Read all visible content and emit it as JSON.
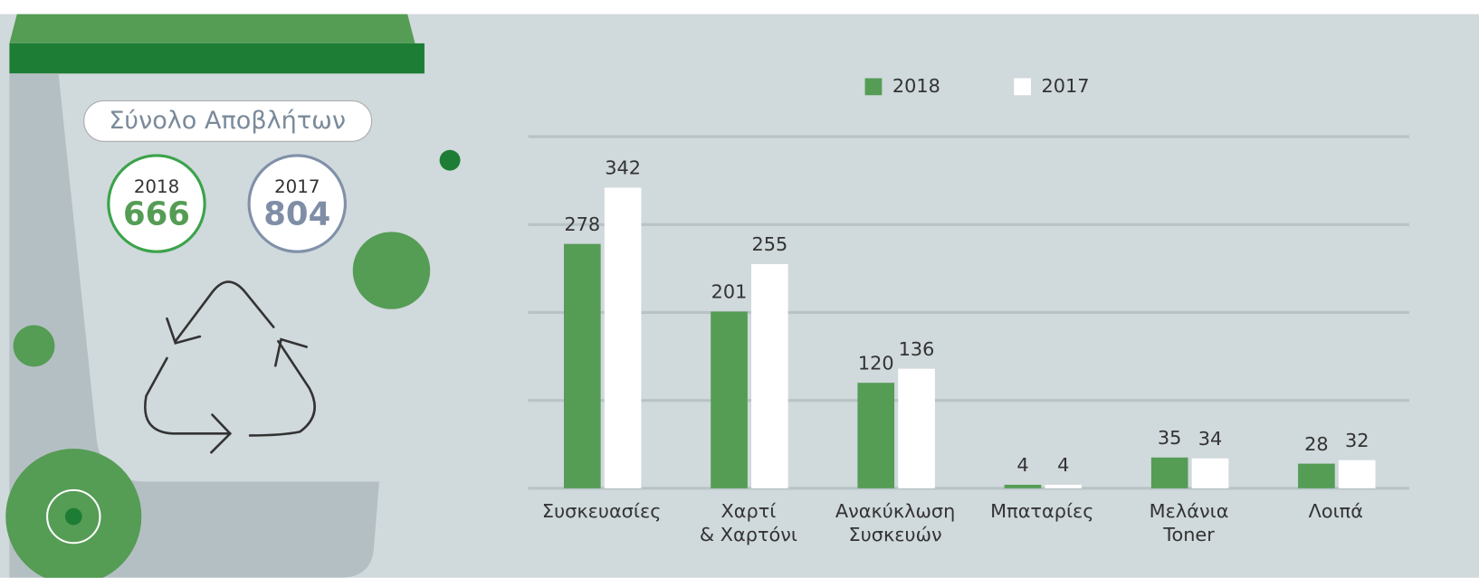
{
  "summary": {
    "title": "Σύνολο Αποβλήτων",
    "items": [
      {
        "year": "2018",
        "total": 666
      },
      {
        "year": "2017",
        "total": 804
      }
    ]
  },
  "chart_data": {
    "type": "bar",
    "categories": [
      "Συσκευασίες",
      "Χαρτί\n& Χαρτόνι",
      "Ανακύκλωση\nΣυσκευών",
      "Μπαταρίες",
      "Μελάνια\nToner",
      "Λοιπά"
    ],
    "series": [
      {
        "name": "2018",
        "color": "#559c55",
        "values": [
          278,
          201,
          120,
          4,
          35,
          28
        ]
      },
      {
        "name": "2017",
        "color": "#ffffff",
        "values": [
          342,
          255,
          136,
          4,
          34,
          32
        ]
      }
    ],
    "ylim": [
      0,
      400
    ],
    "yticks": [
      0,
      100,
      200,
      300,
      400
    ],
    "grid": true
  }
}
